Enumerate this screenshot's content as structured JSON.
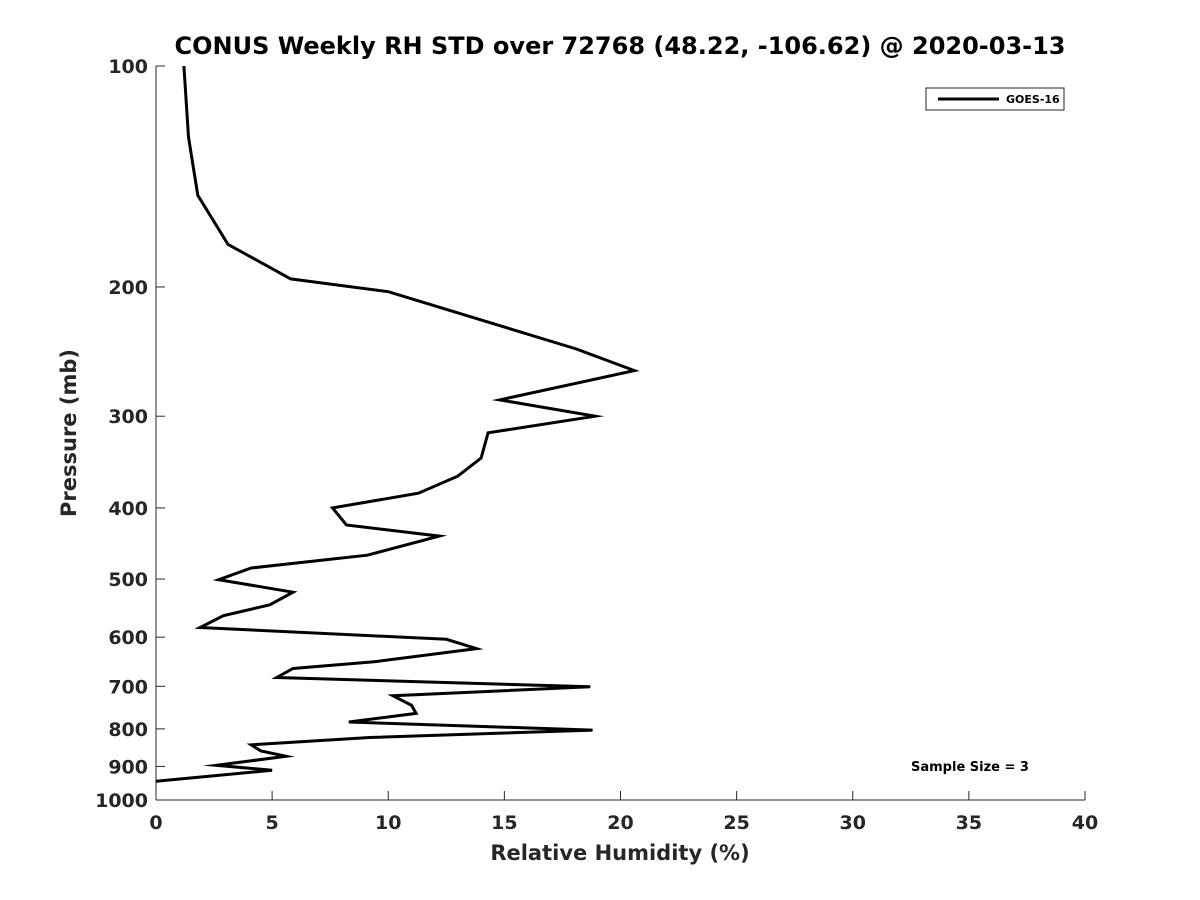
{
  "chart_data": {
    "type": "line",
    "title": "CONUS Weekly RH STD over 72768 (48.22, -106.62) @ 2020-03-13",
    "xlabel": "Relative Humidity (%)",
    "ylabel": "Pressure (mb)",
    "xlim": [
      0,
      40
    ],
    "ylim": [
      100,
      1000
    ],
    "yscale": "log",
    "y_reversed": true,
    "xticks": [
      0,
      5,
      10,
      15,
      20,
      25,
      30,
      35,
      40
    ],
    "yticks": [
      100,
      200,
      300,
      400,
      500,
      600,
      700,
      800,
      900,
      1000
    ],
    "grid": false,
    "legend": {
      "position": "top-right",
      "entries": [
        "GOES-16"
      ]
    },
    "annotation": "Sample Size = 3",
    "series": [
      {
        "name": "GOES-16",
        "color": "#000000",
        "x": [
          1.2,
          1.4,
          1.8,
          3.1,
          5.8,
          10.0,
          18.1,
          20.6,
          14.8,
          18.9,
          14.3,
          14.0,
          13.0,
          11.3,
          7.6,
          8.2,
          12.2,
          9.1,
          4.1,
          2.7,
          5.9,
          4.9,
          2.9,
          1.9,
          12.5,
          13.8,
          9.4,
          5.9,
          5.2,
          18.7,
          10.2,
          11.0,
          11.2,
          8.3,
          18.8,
          9.2,
          4.1,
          4.5,
          5.6,
          2.6,
          5.0,
          0.0
        ],
        "y": [
          100,
          125,
          150,
          175,
          195,
          203,
          243,
          260,
          285,
          300,
          316,
          342,
          362,
          382,
          400,
          422,
          437,
          464,
          483,
          501,
          521,
          542,
          561,
          582,
          604,
          622,
          648,
          662,
          681,
          701,
          721,
          743,
          762,
          783,
          803,
          822,
          841,
          857,
          872,
          897,
          911,
          943
        ]
      }
    ]
  }
}
